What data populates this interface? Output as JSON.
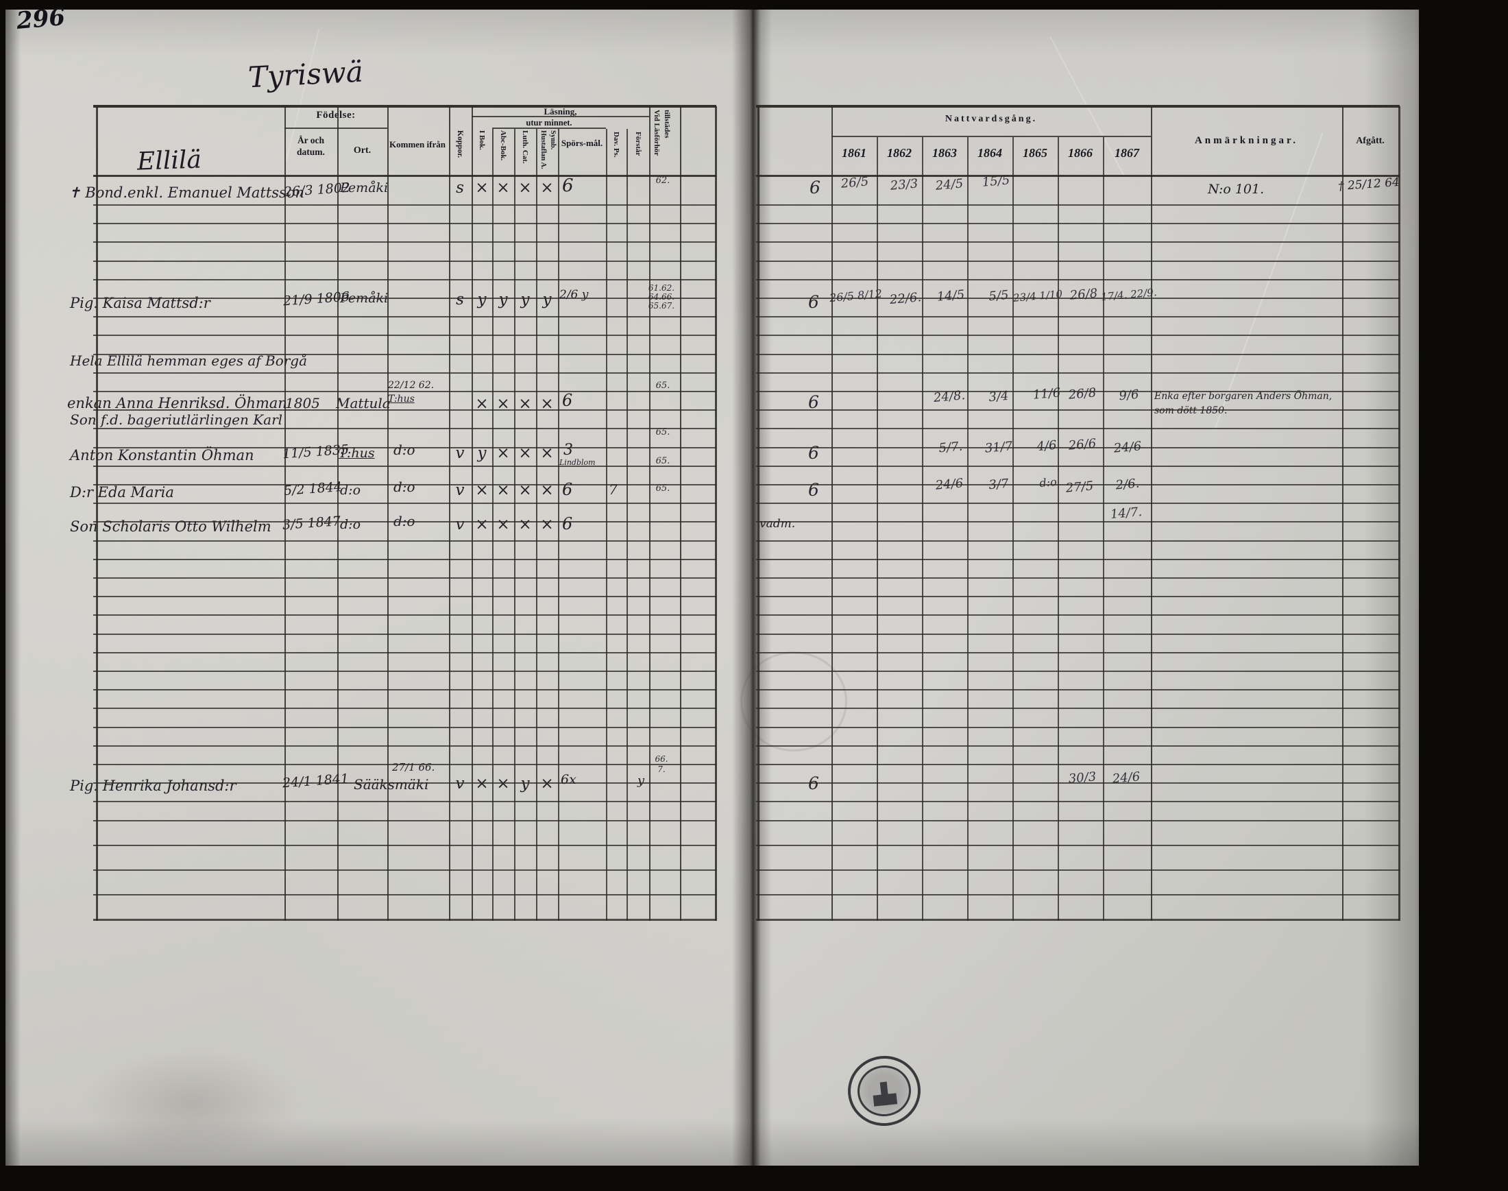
{
  "document": {
    "page_number": "296",
    "title": "Tyriswä",
    "section": "Ellilä"
  },
  "headers": {
    "birth": "Födelse:",
    "birth_year": "År och datum.",
    "birth_place": "Ort.",
    "come_from": "Kommen ifrån",
    "smallpox": "Koppor.",
    "reading": "Läsning,",
    "from_memory": "utur minnet.",
    "in_book": "I Bok.",
    "abc_book": "Abc-Bok.",
    "luth_cat": "Luth. Cat.",
    "hustaflan": "Hustaflan A. Symb.",
    "sporsmal": "Spörs-mål.",
    "dav_ps": "Dav. Ps.",
    "forstar": "Förstår",
    "vid_lasforhor": "Vid Läsförhör tillstädes",
    "communion": "Nattvardsgång.",
    "years": [
      "1861",
      "1862",
      "1863",
      "1864",
      "1865",
      "1866",
      "1867"
    ],
    "remarks": "Anmärkningar.",
    "departed": "Afgått."
  },
  "notes": {
    "estate": "Hela Ellilä hemman eges af Borgå",
    "son_former": "Son f.d. bageriutlärlingen Karl"
  },
  "entries": [
    {
      "name": "✝ Bond.enkl. Emanuel Mattsson",
      "born": "26/3 1802",
      "place": "Pemåki",
      "koppor": "s",
      "marks": [
        "×",
        "×",
        "×",
        "×"
      ],
      "sporsmal": "6",
      "vid": "62.",
      "pre": "6",
      "c1861": "26/5",
      "c1862": "23/3",
      "c1863": "24/5",
      "c1864": "15/5",
      "remark": "N:o 101.",
      "departed": "† 25/12 64"
    },
    {
      "name": "Pig. Kaisa Mattsd:r",
      "born": "21/9 1806",
      "place": "Pemåki",
      "koppor": "s",
      "marks": [
        "y",
        "y",
        "y",
        "y"
      ],
      "sporsmal": "2/6 y",
      "vid_lines": [
        "61.62.",
        "64.66.",
        "65.67."
      ],
      "pre": "6",
      "c1861": "26/5 8/12",
      "c1862": "22/6.",
      "c1863": "14/5",
      "c1864": "5/5",
      "c1865": "23/4 1/10",
      "c1866": "26/8",
      "c1867": "17/4. 22/9."
    },
    {
      "name": "enkan Anna Henriksd. Öhman",
      "born": "1805",
      "place": "Mattula",
      "come_lines": [
        "22/12 62.",
        "T:hus"
      ],
      "marks": [
        "×",
        "×",
        "×",
        "×"
      ],
      "sporsmal": "6",
      "vid": "65.",
      "pre": "6",
      "c1863": "24/8.",
      "c1864": "3/4",
      "c1865": "11/6",
      "c1866": "26/8",
      "c1867": "9/6",
      "remark_lines": [
        "Enka efter borgaren Anders Öhman,",
        "som dött 1850."
      ]
    },
    {
      "name": "Anton Konstantin Öhman",
      "born": "11/5 1835",
      "place": "T:hus",
      "come": "d:o",
      "koppor": "v",
      "marks": [
        "y",
        "×",
        "×",
        "×"
      ],
      "sporsmal": "3",
      "sporsmal_note": "Lindblom",
      "vid": "65.",
      "pre": "6",
      "c1863": "5/7.",
      "c1864": "31/7",
      "c1865": "4/6",
      "c1866": "26/6",
      "c1867": "24/6"
    },
    {
      "name": "D:r Eda Maria",
      "born": "5/2 1844",
      "place": "d:o",
      "come": "d:o",
      "koppor": "v",
      "marks": [
        "×",
        "×",
        "×",
        "×"
      ],
      "sporsmal": "6",
      "dav": "7",
      "vid": "65.",
      "pre": "6",
      "c1863": "24/6",
      "c1864": "3/7",
      "c1865": "d:o",
      "c1866": "27/5",
      "c1867": "2/6."
    },
    {
      "name": "Son Scholaris Otto Wilhelm",
      "born": "3/5 1847",
      "place": "d:o",
      "come": "d:o",
      "koppor": "v",
      "marks": [
        "×",
        "×",
        "×",
        "×"
      ],
      "sporsmal": "6",
      "vid": "65.",
      "note": "vadm.",
      "c1867": "14/7."
    },
    {
      "name": "Pig. Henrika Johansd:r",
      "born": "24/1 1841",
      "place": "Sääksmäki",
      "come": "27/1 66.",
      "koppor": "v",
      "marks": [
        "×",
        "×",
        "y",
        "×"
      ],
      "sporsmal": "6x",
      "forstar": "y",
      "vid_lines": [
        "66.",
        "7."
      ],
      "pre": "6",
      "c1866": "30/3",
      "c1867": "24/6"
    }
  ]
}
